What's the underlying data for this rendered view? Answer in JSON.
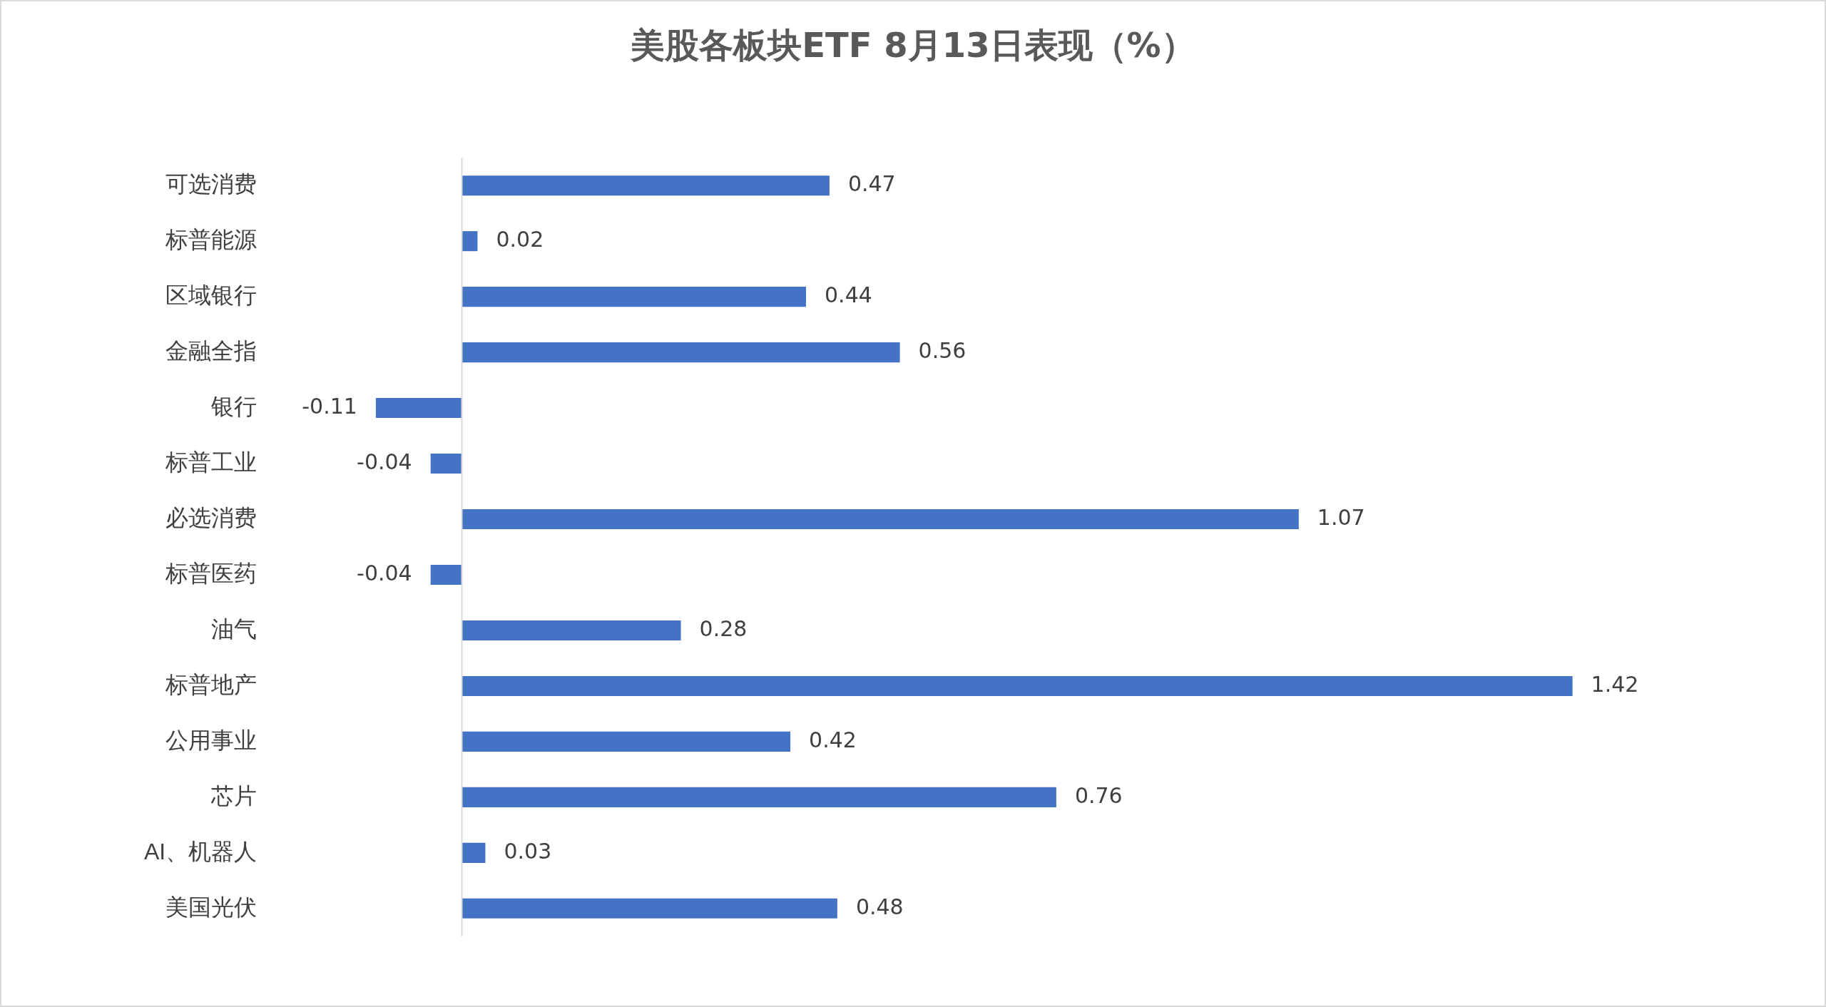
{
  "chart_data": {
    "type": "bar",
    "orientation": "horizontal",
    "title": "美股各板块ETF  8月13日表现（%）",
    "categories": [
      "可选消费",
      "标普能源",
      "区域银行",
      "金融全指",
      "银行",
      "标普工业",
      "必选消费",
      "标普医药",
      "油气",
      "标普地产",
      "公用事业",
      "芯片",
      "AI、机器人",
      "美国光伏"
    ],
    "values": [
      0.47,
      0.02,
      0.44,
      0.56,
      -0.11,
      -0.04,
      1.07,
      -0.04,
      0.28,
      1.42,
      0.42,
      0.76,
      0.03,
      0.48
    ],
    "color": "#4472c4",
    "data_labels": true,
    "legend": false
  }
}
